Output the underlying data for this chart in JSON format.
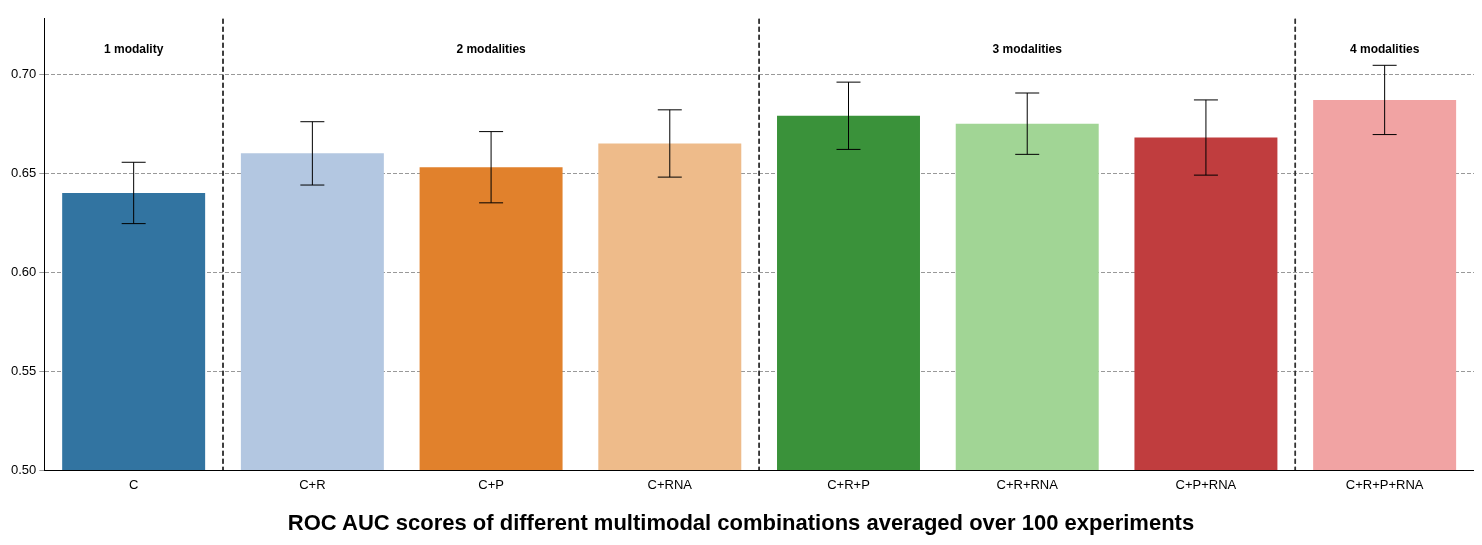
{
  "chart_data": {
    "type": "bar",
    "title": "ROC AUC scores of different multimodal combinations averaged over 100 experiments",
    "categories": [
      "C",
      "C+R",
      "C+P",
      "C+RNA",
      "C+R+P",
      "C+R+RNA",
      "C+P+RNA",
      "C+R+P+RNA"
    ],
    "values": [
      0.64,
      0.66,
      0.653,
      0.665,
      0.679,
      0.675,
      0.668,
      0.687
    ],
    "errors": [
      0.0155,
      0.016,
      0.018,
      0.017,
      0.017,
      0.0155,
      0.019,
      0.0175
    ],
    "colors": [
      "#3274a1",
      "#b3c7e1",
      "#e1812c",
      "#eebb8a",
      "#3a923a",
      "#a1d595",
      "#c03d3e",
      "#f1a3a3"
    ],
    "ylim": [
      0.5,
      0.728
    ],
    "yticks": [
      {
        "value": 0.5,
        "label": "0.50"
      },
      {
        "value": 0.55,
        "label": "0.55"
      },
      {
        "value": 0.6,
        "label": "0.60"
      },
      {
        "value": 0.65,
        "label": "0.65"
      },
      {
        "value": 0.7,
        "label": "0.70"
      }
    ],
    "grid": "y",
    "annotations": [
      "1 modality",
      "2 modalities",
      "3 modalities",
      "4 modalities"
    ]
  }
}
